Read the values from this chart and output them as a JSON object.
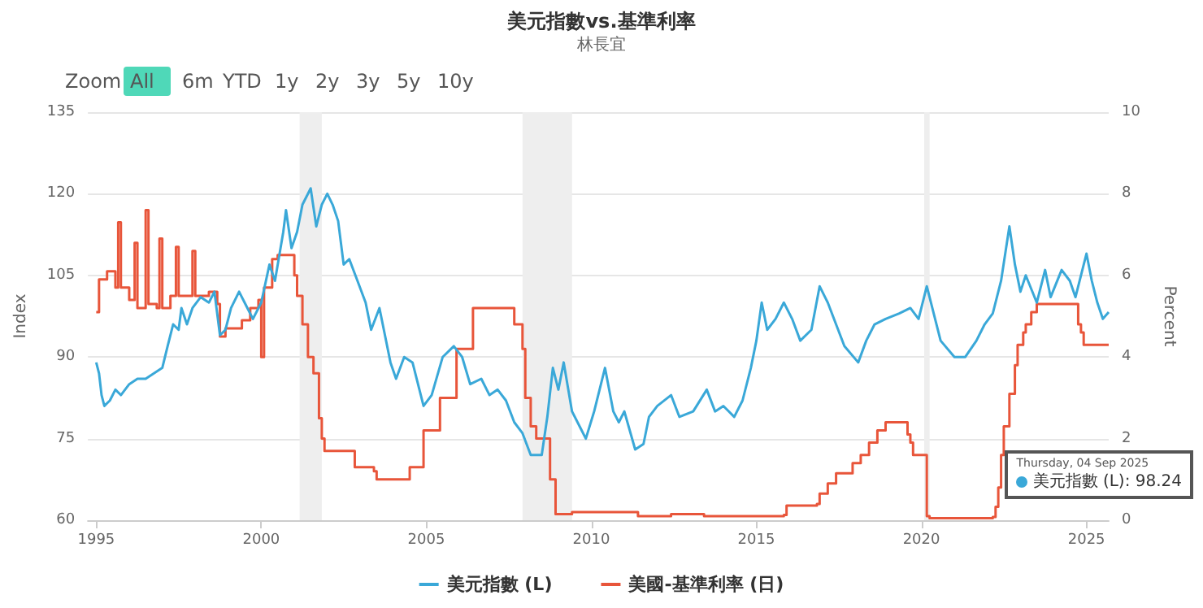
{
  "chart_data": {
    "type": "line",
    "title": "美元指數vs.基準利率",
    "subtitle": "林長宜",
    "ylabel": "Index",
    "y2label": "Percent",
    "annotations": [
      "Zoom",
      "All",
      "6m",
      "YTD",
      "1y",
      "2y",
      "3y",
      "5y",
      "10y",
      "Thursday, 04 Sep 2025",
      "美元指數 (L): 98.24"
    ],
    "xlim": [
      "1994-10",
      "2025-09-04"
    ],
    "xticks": [
      "1995",
      "2000",
      "2005",
      "2010",
      "2015",
      "2020",
      "2025"
    ],
    "ylim": [
      60,
      135
    ],
    "yticks": [
      60,
      75,
      90,
      105,
      120,
      135
    ],
    "y2lim": [
      0,
      10
    ],
    "y2ticks": [
      0,
      2,
      4,
      6,
      8,
      10
    ],
    "grid": "y",
    "legend": "bottom",
    "marker": "none",
    "line_style": "solid",
    "bands": [
      {
        "axis": "x",
        "from": "2001-03",
        "to": "2001-11",
        "color": "#eeeeee"
      },
      {
        "axis": "x",
        "from": "2007-12",
        "to": "2009-06",
        "color": "#eeeeee"
      },
      {
        "axis": "x",
        "from": "2020-02",
        "to": "2020-04",
        "color": "#eeeeee"
      }
    ],
    "series": [
      {
        "name": "美元指數 (L)",
        "color": "#3aa8d8",
        "x": [
          "1995-01",
          "1995-02",
          "1995-03",
          "1995-04",
          "1995-06",
          "1995-08",
          "1995-10",
          "1996-01",
          "1996-04",
          "1996-07",
          "1996-10",
          "1997-01",
          "1997-03",
          "1997-05",
          "1997-07",
          "1997-08",
          "1997-10",
          "1997-12",
          "1998-03",
          "1998-06",
          "1998-08",
          "1998-10",
          "1998-12",
          "1999-02",
          "1999-05",
          "1999-07",
          "1999-10",
          "2000-01",
          "2000-04",
          "2000-06",
          "2000-09",
          "2000-10",
          "2000-12",
          "2001-02",
          "2001-04",
          "2001-07",
          "2001-09",
          "2001-11",
          "2002-01",
          "2002-03",
          "2002-05",
          "2002-07",
          "2002-09",
          "2002-12",
          "2003-03",
          "2003-05",
          "2003-08",
          "2003-12",
          "2004-02",
          "2004-05",
          "2004-08",
          "2004-12",
          "2005-03",
          "2005-07",
          "2005-11",
          "2006-02",
          "2006-05",
          "2006-09",
          "2006-12",
          "2007-03",
          "2007-06",
          "2007-09",
          "2007-12",
          "2008-03",
          "2008-07",
          "2008-09",
          "2008-11",
          "2009-01",
          "2009-03",
          "2009-06",
          "2009-09",
          "2009-11",
          "2010-02",
          "2010-06",
          "2010-09",
          "2010-11",
          "2011-01",
          "2011-05",
          "2011-08",
          "2011-10",
          "2012-01",
          "2012-06",
          "2012-09",
          "2013-02",
          "2013-07",
          "2013-10",
          "2014-01",
          "2014-05",
          "2014-08",
          "2014-11",
          "2015-01",
          "2015-03",
          "2015-05",
          "2015-08",
          "2015-11",
          "2016-02",
          "2016-05",
          "2016-09",
          "2016-12",
          "2017-03",
          "2017-06",
          "2017-09",
          "2018-02",
          "2018-05",
          "2018-08",
          "2018-12",
          "2019-05",
          "2019-09",
          "2019-12",
          "2020-03",
          "2020-05",
          "2020-08",
          "2021-01",
          "2021-05",
          "2021-09",
          "2021-12",
          "2022-03",
          "2022-06",
          "2022-09",
          "2022-11",
          "2023-01",
          "2023-03",
          "2023-07",
          "2023-10",
          "2023-12",
          "2024-04",
          "2024-07",
          "2024-09",
          "2025-01",
          "2025-03",
          "2025-05",
          "2025-07",
          "2025-09-04"
        ],
        "values": [
          89,
          87,
          83,
          81,
          82,
          84,
          83,
          85,
          86,
          86,
          87,
          88,
          92,
          96,
          95,
          99,
          96,
          99,
          101,
          100,
          102,
          94,
          95,
          99,
          102,
          100,
          97,
          100,
          107,
          104,
          113,
          117,
          110,
          113,
          118,
          121,
          114,
          118,
          120,
          118,
          115,
          107,
          108,
          104,
          100,
          95,
          99,
          89,
          86,
          90,
          89,
          81,
          83,
          90,
          92,
          90,
          85,
          86,
          83,
          84,
          82,
          78,
          76,
          72,
          72,
          79,
          88,
          84,
          89,
          80,
          77,
          75,
          80,
          88,
          80,
          78,
          80,
          73,
          74,
          79,
          81,
          83,
          79,
          80,
          84,
          80,
          81,
          79,
          82,
          88,
          93,
          100,
          95,
          97,
          100,
          97,
          93,
          95,
          103,
          100,
          96,
          92,
          89,
          93,
          96,
          97,
          98,
          99,
          97,
          103,
          99,
          93,
          90,
          90,
          93,
          96,
          98,
          104,
          114,
          107,
          102,
          105,
          100,
          106,
          101,
          106,
          104,
          101,
          109,
          104,
          100,
          97,
          98.24
        ]
      },
      {
        "name": "美國-基準利率 (日)",
        "color": "#e8553a",
        "type": "step",
        "axis": "y2",
        "x": [
          "1995-01",
          "1995-02",
          "1995-05",
          "1995-08",
          "1995-09",
          "1995-10",
          "1996-01",
          "1996-03",
          "1996-04",
          "1996-07",
          "1996-08",
          "1996-11",
          "1996-12",
          "1997-01",
          "1997-04",
          "1997-06",
          "1997-07",
          "1997-10",
          "1997-12",
          "1998-01",
          "1998-06",
          "1998-09",
          "1998-10",
          "1998-12",
          "1999-03",
          "1999-06",
          "1999-09",
          "1999-12",
          "2000-01",
          "2000-02",
          "2000-05",
          "2000-07",
          "2000-12",
          "2001-01",
          "2001-02",
          "2001-04",
          "2001-06",
          "2001-08",
          "2001-10",
          "2001-11",
          "2001-12",
          "2002-10",
          "2002-11",
          "2003-06",
          "2003-07",
          "2004-06",
          "2004-07",
          "2004-12",
          "2005-06",
          "2005-12",
          "2006-06",
          "2007-08",
          "2007-09",
          "2007-12",
          "2008-01",
          "2008-03",
          "2008-05",
          "2008-09",
          "2008-10",
          "2008-12",
          "2009-06",
          "2010-06",
          "2011-06",
          "2012-06",
          "2013-06",
          "2014-06",
          "2015-11",
          "2015-12",
          "2016-11",
          "2016-12",
          "2017-03",
          "2017-06",
          "2017-12",
          "2018-03",
          "2018-06",
          "2018-09",
          "2018-12",
          "2019-07",
          "2019-08",
          "2019-09",
          "2019-10",
          "2020-02",
          "2020-03",
          "2020-04",
          "2022-03",
          "2022-04",
          "2022-05",
          "2022-06",
          "2022-07",
          "2022-09",
          "2022-11",
          "2022-12",
          "2023-02",
          "2023-03",
          "2023-05",
          "2023-07",
          "2024-09",
          "2024-10",
          "2024-11",
          "2024-12",
          "2025-09-04"
        ],
        "values": [
          5.1,
          5.9,
          6.1,
          5.7,
          7.3,
          5.7,
          5.4,
          6.8,
          5.2,
          7.6,
          5.3,
          5.2,
          6.9,
          5.2,
          5.5,
          6.7,
          5.5,
          5.5,
          6.6,
          5.5,
          5.6,
          5.3,
          4.5,
          4.7,
          4.7,
          4.9,
          5.2,
          5.4,
          4.0,
          5.7,
          6.4,
          6.5,
          6.5,
          6.0,
          5.5,
          4.8,
          4.0,
          3.6,
          2.5,
          2.0,
          1.7,
          1.7,
          1.3,
          1.2,
          1.0,
          1.0,
          1.3,
          2.2,
          3.0,
          4.2,
          5.2,
          5.2,
          4.8,
          4.2,
          3.0,
          2.3,
          2.0,
          2.0,
          1.0,
          0.15,
          0.2,
          0.2,
          0.1,
          0.15,
          0.1,
          0.1,
          0.13,
          0.36,
          0.4,
          0.65,
          0.9,
          1.15,
          1.4,
          1.6,
          1.9,
          2.2,
          2.4,
          2.4,
          2.1,
          1.9,
          1.6,
          1.6,
          0.1,
          0.05,
          0.08,
          0.33,
          0.8,
          1.6,
          2.3,
          3.1,
          3.8,
          4.3,
          4.6,
          4.8,
          5.1,
          5.3,
          5.3,
          4.8,
          4.6,
          4.3,
          4.3
        ]
      }
    ]
  }
}
